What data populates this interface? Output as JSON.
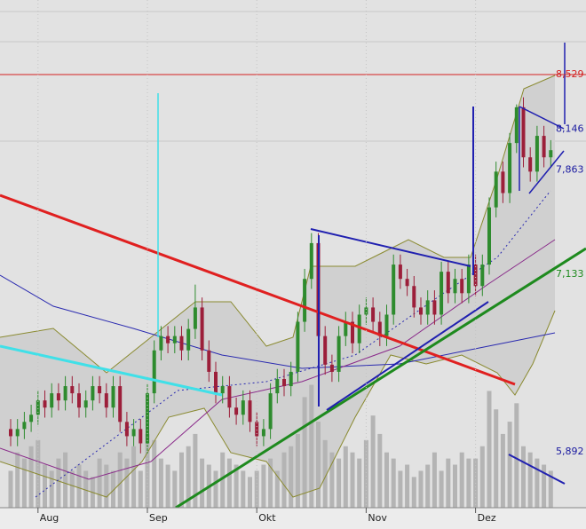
{
  "chart_data": {
    "type": "candlestick",
    "ohlc": [
      [
        6.05,
        6.12,
        5.93,
        6.0
      ],
      [
        6.0,
        6.12,
        5.93,
        6.05
      ],
      [
        6.05,
        6.17,
        5.98,
        6.1
      ],
      [
        6.1,
        6.22,
        6.03,
        6.15
      ],
      [
        6.15,
        6.32,
        6.08,
        6.25
      ],
      [
        6.25,
        6.32,
        6.13,
        6.2
      ],
      [
        6.2,
        6.37,
        6.13,
        6.3
      ],
      [
        6.3,
        6.37,
        6.18,
        6.25
      ],
      [
        6.25,
        6.42,
        6.18,
        6.35
      ],
      [
        6.35,
        6.42,
        6.23,
        6.3
      ],
      [
        6.3,
        6.37,
        6.13,
        6.2
      ],
      [
        6.2,
        6.32,
        6.13,
        6.25
      ],
      [
        6.25,
        6.42,
        6.18,
        6.35
      ],
      [
        6.35,
        6.42,
        6.23,
        6.3
      ],
      [
        6.3,
        6.37,
        6.13,
        6.2
      ],
      [
        6.2,
        6.42,
        6.13,
        6.35
      ],
      [
        6.35,
        6.42,
        6.03,
        6.1
      ],
      [
        6.1,
        6.17,
        5.93,
        6.0
      ],
      [
        6.0,
        6.12,
        5.93,
        6.05
      ],
      [
        6.05,
        6.12,
        5.88,
        5.95
      ],
      [
        5.95,
        6.37,
        5.88,
        6.3
      ],
      [
        6.3,
        6.67,
        6.23,
        6.6
      ],
      [
        6.6,
        6.77,
        6.53,
        6.7
      ],
      [
        6.7,
        6.77,
        6.58,
        6.65
      ],
      [
        6.65,
        6.77,
        6.58,
        6.7
      ],
      [
        6.7,
        6.77,
        6.53,
        6.6
      ],
      [
        6.6,
        6.82,
        6.53,
        6.75
      ],
      [
        6.75,
        7.06,
        6.68,
        6.9
      ],
      [
        6.9,
        6.97,
        6.53,
        6.6
      ],
      [
        6.6,
        6.67,
        6.38,
        6.45
      ],
      [
        6.45,
        6.52,
        6.23,
        6.3
      ],
      [
        6.3,
        6.42,
        6.23,
        6.35
      ],
      [
        6.35,
        6.42,
        6.13,
        6.2
      ],
      [
        6.2,
        6.27,
        6.08,
        6.15
      ],
      [
        6.15,
        6.32,
        6.08,
        6.25
      ],
      [
        6.25,
        6.32,
        6.03,
        6.1
      ],
      [
        6.1,
        6.17,
        5.93,
        6.0
      ],
      [
        6.0,
        6.12,
        5.93,
        6.05
      ],
      [
        6.05,
        6.37,
        5.98,
        6.3
      ],
      [
        6.3,
        6.47,
        6.23,
        6.4
      ],
      [
        6.4,
        6.47,
        6.28,
        6.35
      ],
      [
        6.35,
        6.52,
        6.28,
        6.45
      ],
      [
        6.45,
        6.87,
        6.38,
        6.8
      ],
      [
        6.8,
        7.17,
        6.73,
        7.1
      ],
      [
        7.1,
        7.42,
        7.03,
        7.35
      ],
      [
        7.35,
        7.42,
        6.63,
        6.7
      ],
      [
        6.7,
        6.77,
        6.43,
        6.5
      ],
      [
        6.5,
        6.57,
        6.38,
        6.45
      ],
      [
        6.45,
        6.77,
        6.38,
        6.7
      ],
      [
        6.7,
        6.87,
        6.63,
        6.8
      ],
      [
        6.8,
        6.87,
        6.58,
        6.65
      ],
      [
        6.65,
        6.92,
        6.58,
        6.85
      ],
      [
        6.85,
        6.97,
        6.78,
        6.9
      ],
      [
        6.9,
        6.97,
        6.73,
        6.8
      ],
      [
        6.8,
        6.87,
        6.63,
        6.7
      ],
      [
        6.7,
        6.92,
        6.63,
        6.85
      ],
      [
        6.85,
        7.27,
        6.78,
        7.2
      ],
      [
        7.2,
        7.27,
        7.03,
        7.1
      ],
      [
        7.1,
        7.17,
        6.98,
        7.05
      ],
      [
        7.05,
        7.12,
        6.83,
        6.9
      ],
      [
        6.9,
        6.97,
        6.78,
        6.85
      ],
      [
        6.85,
        7.02,
        6.78,
        6.95
      ],
      [
        6.95,
        7.02,
        6.78,
        6.85
      ],
      [
        6.85,
        7.22,
        6.78,
        7.15
      ],
      [
        7.15,
        7.22,
        6.93,
        7.0
      ],
      [
        7.0,
        7.17,
        6.93,
        7.1
      ],
      [
        7.1,
        7.17,
        6.93,
        7.0
      ],
      [
        7.0,
        7.27,
        6.93,
        7.2
      ],
      [
        7.2,
        7.27,
        6.98,
        7.05
      ],
      [
        7.05,
        7.27,
        6.98,
        7.2
      ],
      [
        7.2,
        7.67,
        7.13,
        7.6
      ],
      [
        7.6,
        7.92,
        7.53,
        7.85
      ],
      [
        7.85,
        7.92,
        7.63,
        7.7
      ],
      [
        7.7,
        8.12,
        7.63,
        8.05
      ],
      [
        8.05,
        8.32,
        7.98,
        8.3
      ],
      [
        8.3,
        8.37,
        7.88,
        7.95
      ],
      [
        7.95,
        8.02,
        7.78,
        7.85
      ],
      [
        7.85,
        8.17,
        7.78,
        8.1
      ],
      [
        8.1,
        8.17,
        7.88,
        7.95
      ],
      [
        7.95,
        8.07,
        7.88,
        8.0
      ]
    ],
    "volume": [
      30,
      45,
      40,
      50,
      55,
      35,
      30,
      40,
      45,
      30,
      35,
      30,
      25,
      40,
      35,
      30,
      45,
      40,
      50,
      30,
      60,
      55,
      40,
      35,
      30,
      45,
      50,
      60,
      40,
      35,
      30,
      45,
      40,
      35,
      30,
      25,
      30,
      35,
      40,
      30,
      45,
      50,
      60,
      90,
      100,
      70,
      55,
      45,
      40,
      50,
      45,
      40,
      55,
      75,
      60,
      45,
      40,
      30,
      35,
      25,
      30,
      35,
      45,
      30,
      40,
      35,
      45,
      40,
      40,
      50,
      95,
      80,
      60,
      70,
      85,
      50,
      45,
      40,
      35,
      30
    ],
    "vlim": [
      0,
      130
    ],
    "ylim": [
      5.5,
      9.05
    ],
    "up_color": "#2e8b2e",
    "down_color": "#9c1f3a",
    "volume_color": "#b4b4b4",
    "xticks": [
      {
        "value": 4,
        "label": "Aug"
      },
      {
        "value": 20,
        "label": "Sep"
      },
      {
        "value": 36,
        "label": "Okt"
      },
      {
        "value": 52,
        "label": "Nov"
      },
      {
        "value": 68,
        "label": "Dez"
      }
    ],
    "annotations": [
      {
        "value": 8.529,
        "label": "8,529",
        "color": "#d42020",
        "hline": true
      },
      {
        "value": 8.146,
        "label": "8,146",
        "color": "#1a1aa0"
      },
      {
        "value": 7.863,
        "label": "7,863",
        "color": "#1a1aa0"
      },
      {
        "value": 7.133,
        "label": "7,133",
        "color": "#1e8a1e"
      },
      {
        "value": 5.892,
        "label": "5,892",
        "color": "#1a1aa0"
      }
    ]
  }
}
